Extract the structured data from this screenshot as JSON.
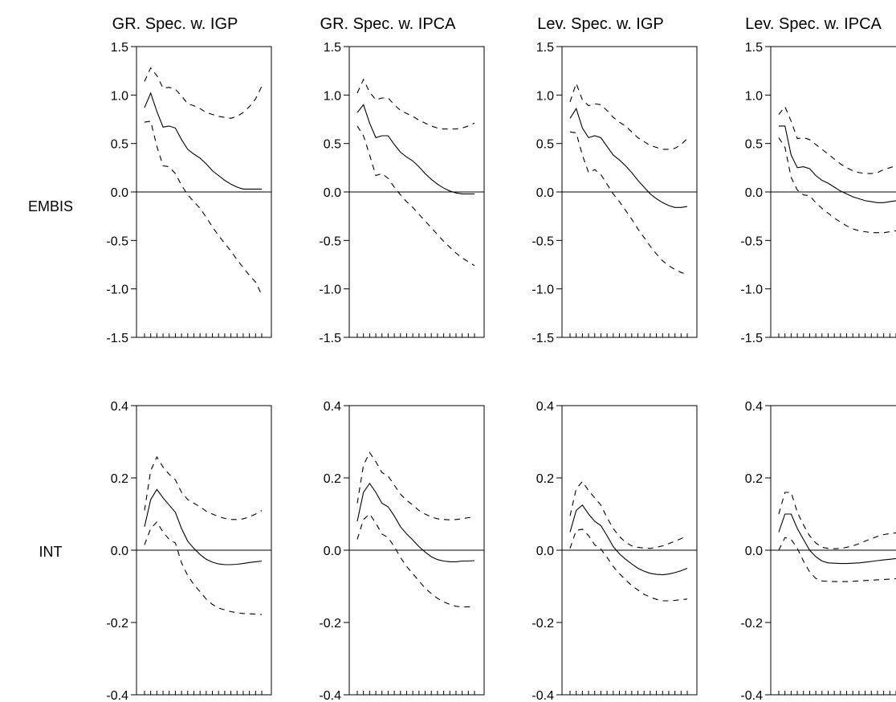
{
  "titles": [
    "GR. Spec. w. IGP",
    "GR. Spec. w. IPCA",
    "Lev. Spec. w. IGP",
    "Lev. Spec. w. IPCA"
  ],
  "row_labels": [
    "EMBIS",
    "INT"
  ],
  "rows": [
    {
      "ylim": [
        -1.5,
        1.5
      ],
      "yticks": [
        -1.5,
        -1.0,
        -0.5,
        0.0,
        0.5,
        1.0,
        1.5
      ],
      "ytick_labels": [
        "-1.5",
        "-1.0",
        "-0.5",
        "0.0",
        "0.5",
        "1.0",
        "1.5"
      ]
    },
    {
      "ylim": [
        -0.4,
        0.4
      ],
      "yticks": [
        -0.4,
        -0.2,
        0.0,
        0.2,
        0.4
      ],
      "ytick_labels": [
        "-0.4",
        "-0.2",
        "0.0",
        "0.2",
        "0.4"
      ]
    }
  ],
  "chart_data": [
    {
      "type": "line",
      "title": "GR. Spec. w. IGP",
      "row_label": "EMBIS",
      "x": [
        1,
        2,
        3,
        4,
        5,
        6,
        7,
        8,
        9,
        10,
        11,
        12,
        13,
        14,
        15,
        16,
        17,
        18,
        19,
        20
      ],
      "ylim": [
        -1.5,
        1.5
      ],
      "series": [
        {
          "values": [
            0.87,
            1.02,
            0.83,
            0.67,
            0.68,
            0.66,
            0.54,
            0.44,
            0.39,
            0.35,
            0.29,
            0.22,
            0.17,
            0.12,
            0.08,
            0.05,
            0.03,
            0.03,
            0.03,
            0.03
          ]
        },
        {
          "values": [
            1.14,
            1.28,
            1.2,
            1.07,
            1.08,
            1.06,
            0.99,
            0.91,
            0.89,
            0.86,
            0.82,
            0.8,
            0.78,
            0.77,
            0.76,
            0.78,
            0.82,
            0.88,
            0.96,
            1.09
          ]
        },
        {
          "values": [
            0.72,
            0.73,
            0.47,
            0.27,
            0.26,
            0.19,
            0.07,
            -0.03,
            -0.1,
            -0.17,
            -0.26,
            -0.36,
            -0.45,
            -0.53,
            -0.61,
            -0.7,
            -0.78,
            -0.86,
            -0.93,
            -1.06
          ]
        }
      ]
    },
    {
      "type": "line",
      "title": "GR. Spec. w. IPCA",
      "row_label": "EMBIS",
      "x": [
        1,
        2,
        3,
        4,
        5,
        6,
        7,
        8,
        9,
        10,
        11,
        12,
        13,
        14,
        15,
        16,
        17,
        18,
        19,
        20
      ],
      "ylim": [
        -1.5,
        1.5
      ],
      "series": [
        {
          "values": [
            0.82,
            0.9,
            0.71,
            0.56,
            0.58,
            0.58,
            0.49,
            0.41,
            0.36,
            0.32,
            0.26,
            0.19,
            0.13,
            0.08,
            0.04,
            0.01,
            -0.01,
            -0.02,
            -0.02,
            -0.02
          ]
        },
        {
          "values": [
            1.02,
            1.16,
            1.03,
            0.95,
            0.97,
            0.97,
            0.9,
            0.84,
            0.81,
            0.78,
            0.74,
            0.71,
            0.68,
            0.66,
            0.65,
            0.65,
            0.65,
            0.66,
            0.68,
            0.71
          ]
        },
        {
          "values": [
            0.68,
            0.58,
            0.38,
            0.17,
            0.19,
            0.14,
            0.05,
            -0.03,
            -0.1,
            -0.16,
            -0.23,
            -0.3,
            -0.37,
            -0.44,
            -0.51,
            -0.57,
            -0.63,
            -0.68,
            -0.72,
            -0.76
          ]
        }
      ]
    },
    {
      "type": "line",
      "title": "Lev. Spec. w. IGP",
      "row_label": "EMBIS",
      "x": [
        1,
        2,
        3,
        4,
        5,
        6,
        7,
        8,
        9,
        10,
        11,
        12,
        13,
        14,
        15,
        16,
        17,
        18,
        19,
        20
      ],
      "ylim": [
        -1.5,
        1.5
      ],
      "series": [
        {
          "values": [
            0.76,
            0.86,
            0.66,
            0.56,
            0.58,
            0.56,
            0.47,
            0.38,
            0.33,
            0.27,
            0.2,
            0.12,
            0.05,
            -0.02,
            -0.07,
            -0.11,
            -0.14,
            -0.16,
            -0.16,
            -0.15
          ]
        },
        {
          "values": [
            0.93,
            1.12,
            0.95,
            0.89,
            0.91,
            0.9,
            0.84,
            0.77,
            0.72,
            0.68,
            0.62,
            0.56,
            0.52,
            0.48,
            0.46,
            0.44,
            0.44,
            0.45,
            0.49,
            0.55
          ]
        },
        {
          "values": [
            0.62,
            0.61,
            0.38,
            0.2,
            0.23,
            0.18,
            0.08,
            -0.02,
            -0.1,
            -0.19,
            -0.28,
            -0.38,
            -0.47,
            -0.56,
            -0.64,
            -0.71,
            -0.76,
            -0.8,
            -0.83,
            -0.85
          ]
        }
      ]
    },
    {
      "type": "line",
      "title": "Lev. Spec. w. IPCA",
      "row_label": "EMBIS",
      "x": [
        1,
        2,
        3,
        4,
        5,
        6,
        7,
        8,
        9,
        10,
        11,
        12,
        13,
        14,
        15,
        16,
        17,
        18,
        19,
        20
      ],
      "ylim": [
        -1.5,
        1.5
      ],
      "series": [
        {
          "values": [
            0.68,
            0.68,
            0.38,
            0.25,
            0.26,
            0.24,
            0.17,
            0.12,
            0.09,
            0.05,
            0.01,
            -0.02,
            -0.05,
            -0.07,
            -0.09,
            -0.1,
            -0.11,
            -0.11,
            -0.1,
            -0.09
          ]
        },
        {
          "values": [
            0.8,
            0.88,
            0.73,
            0.55,
            0.56,
            0.54,
            0.49,
            0.44,
            0.39,
            0.34,
            0.29,
            0.25,
            0.22,
            0.2,
            0.19,
            0.19,
            0.2,
            0.23,
            0.25,
            0.27
          ]
        },
        {
          "values": [
            0.56,
            0.46,
            0.15,
            0.02,
            -0.03,
            -0.04,
            -0.11,
            -0.17,
            -0.22,
            -0.27,
            -0.31,
            -0.35,
            -0.38,
            -0.4,
            -0.41,
            -0.42,
            -0.42,
            -0.42,
            -0.41,
            -0.4
          ]
        }
      ]
    },
    {
      "type": "line",
      "title": "GR. Spec. w. IGP",
      "row_label": "INT",
      "x": [
        1,
        2,
        3,
        4,
        5,
        6,
        7,
        8,
        9,
        10,
        11,
        12,
        13,
        14,
        15,
        16,
        17,
        18,
        19,
        20
      ],
      "ylim": [
        -0.4,
        0.4
      ],
      "series": [
        {
          "values": [
            0.065,
            0.14,
            0.168,
            0.145,
            0.125,
            0.105,
            0.06,
            0.025,
            0.005,
            -0.012,
            -0.025,
            -0.033,
            -0.038,
            -0.04,
            -0.04,
            -0.039,
            -0.037,
            -0.034,
            -0.032,
            -0.03
          ]
        },
        {
          "values": [
            0.11,
            0.22,
            0.258,
            0.23,
            0.21,
            0.195,
            0.16,
            0.14,
            0.13,
            0.12,
            0.108,
            0.1,
            0.093,
            0.088,
            0.085,
            0.085,
            0.087,
            0.092,
            0.1,
            0.11
          ]
        },
        {
          "values": [
            0.015,
            0.06,
            0.078,
            0.05,
            0.03,
            0.02,
            -0.035,
            -0.07,
            -0.095,
            -0.115,
            -0.135,
            -0.15,
            -0.16,
            -0.165,
            -0.17,
            -0.173,
            -0.175,
            -0.176,
            -0.177,
            -0.178
          ]
        }
      ]
    },
    {
      "type": "line",
      "title": "GR. Spec. w. IPCA",
      "row_label": "INT",
      "x": [
        1,
        2,
        3,
        4,
        5,
        6,
        7,
        8,
        9,
        10,
        11,
        12,
        13,
        14,
        15,
        16,
        17,
        18,
        19,
        20
      ],
      "ylim": [
        -0.4,
        0.4
      ],
      "series": [
        {
          "values": [
            0.08,
            0.16,
            0.185,
            0.16,
            0.13,
            0.12,
            0.095,
            0.065,
            0.045,
            0.028,
            0.01,
            -0.005,
            -0.018,
            -0.026,
            -0.03,
            -0.032,
            -0.032,
            -0.03,
            -0.03,
            -0.029
          ]
        },
        {
          "values": [
            0.13,
            0.235,
            0.27,
            0.245,
            0.215,
            0.205,
            0.18,
            0.155,
            0.138,
            0.125,
            0.11,
            0.1,
            0.092,
            0.087,
            0.085,
            0.084,
            0.085,
            0.087,
            0.09,
            0.092
          ]
        },
        {
          "values": [
            0.03,
            0.085,
            0.1,
            0.075,
            0.045,
            0.035,
            0.01,
            -0.02,
            -0.045,
            -0.065,
            -0.085,
            -0.105,
            -0.12,
            -0.133,
            -0.143,
            -0.15,
            -0.155,
            -0.157,
            -0.157,
            -0.156
          ]
        }
      ]
    },
    {
      "type": "line",
      "title": "Lev. Spec. w. IGP",
      "row_label": "INT",
      "x": [
        1,
        2,
        3,
        4,
        5,
        6,
        7,
        8,
        9,
        10,
        11,
        12,
        13,
        14,
        15,
        16,
        17,
        18,
        19,
        20
      ],
      "ylim": [
        -0.4,
        0.4
      ],
      "series": [
        {
          "values": [
            0.05,
            0.11,
            0.125,
            0.1,
            0.08,
            0.068,
            0.04,
            0.01,
            -0.01,
            -0.025,
            -0.038,
            -0.05,
            -0.058,
            -0.064,
            -0.067,
            -0.068,
            -0.066,
            -0.062,
            -0.057,
            -0.05
          ]
        },
        {
          "values": [
            0.095,
            0.17,
            0.19,
            0.165,
            0.145,
            0.125,
            0.09,
            0.06,
            0.038,
            0.022,
            0.012,
            0.008,
            0.006,
            0.005,
            0.008,
            0.012,
            0.018,
            0.025,
            0.032,
            0.04
          ]
        },
        {
          "values": [
            0.005,
            0.055,
            0.058,
            0.04,
            0.015,
            0.003,
            -0.02,
            -0.045,
            -0.065,
            -0.082,
            -0.098,
            -0.11,
            -0.122,
            -0.13,
            -0.136,
            -0.14,
            -0.14,
            -0.139,
            -0.137,
            -0.135
          ]
        }
      ]
    },
    {
      "type": "line",
      "title": "Lev. Spec. w. IPCA",
      "row_label": "INT",
      "x": [
        1,
        2,
        3,
        4,
        5,
        6,
        7,
        8,
        9,
        10,
        11,
        12,
        13,
        14,
        15,
        16,
        17,
        18,
        19,
        20
      ],
      "ylim": [
        -0.4,
        0.4
      ],
      "series": [
        {
          "values": [
            0.05,
            0.1,
            0.1,
            0.06,
            0.03,
            0.0,
            -0.018,
            -0.03,
            -0.035,
            -0.036,
            -0.037,
            -0.037,
            -0.036,
            -0.035,
            -0.033,
            -0.031,
            -0.029,
            -0.027,
            -0.025,
            -0.023
          ]
        },
        {
          "values": [
            0.1,
            0.16,
            0.16,
            0.105,
            0.07,
            0.04,
            0.02,
            0.008,
            0.005,
            0.004,
            0.005,
            0.008,
            0.012,
            0.018,
            0.025,
            0.032,
            0.038,
            0.043,
            0.046,
            0.048
          ]
        },
        {
          "values": [
            0.0,
            0.035,
            0.03,
            0.005,
            -0.03,
            -0.06,
            -0.078,
            -0.085,
            -0.086,
            -0.087,
            -0.087,
            -0.087,
            -0.086,
            -0.085,
            -0.084,
            -0.083,
            -0.082,
            -0.081,
            -0.08,
            -0.079
          ]
        }
      ]
    }
  ]
}
